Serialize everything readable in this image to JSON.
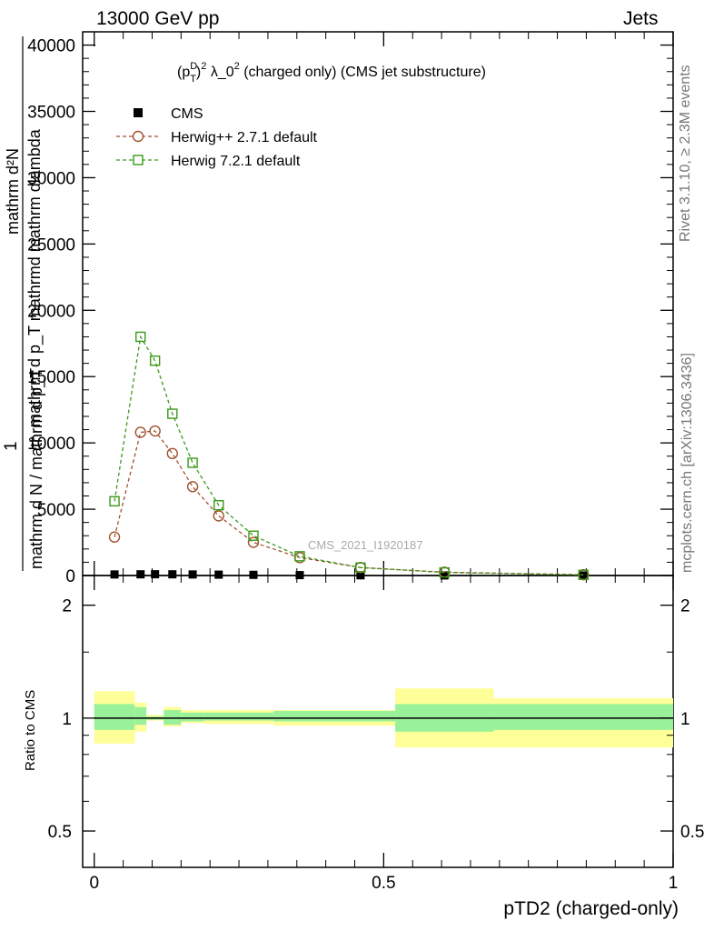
{
  "header": {
    "left": "13000 GeV pp",
    "right": "Jets"
  },
  "side_labels": {
    "rivet": "Rivet 3.1.10, ≥ 2.3M events",
    "mcplots": "mcplots.cern.ch [arXiv:1306.3436]"
  },
  "watermark": "CMS_2021_I1920187",
  "chart_data": [
    {
      "type": "line",
      "title": "(p_T^D)^2 λ_0^2 (charged only) (CMS jet substructure)",
      "title_parts": {
        "open": "(p",
        "sup": "D",
        "sub": "T",
        "close": ")",
        "exp": "2",
        "lambda": " λ_0",
        "exp2": "2",
        "rest": " (charged only) (CMS jet substructure)"
      },
      "ylabel_numerator_top": "mathrm d²N",
      "ylabel_numerator_bottom": "mathrm d p_T mathrmd mathrm dlambda",
      "ylabel_denominator": "mathrm d N / mathrm d p_T",
      "ylabel_leading": "1",
      "ylim": [
        0,
        41000
      ],
      "yticks": [
        0,
        5000,
        10000,
        15000,
        20000,
        25000,
        30000,
        35000,
        40000
      ],
      "ytick_labels": [
        "0",
        "5000",
        "10000",
        "15000",
        "20000",
        "25000",
        "30000",
        "35000",
        "40000"
      ],
      "xlim": [
        -0.02,
        1.0
      ],
      "legend_position": "top-left",
      "series": [
        {
          "name": "CMS",
          "color": "#000000",
          "marker": "filled-square",
          "x": [
            0.035,
            0.08,
            0.105,
            0.135,
            0.17,
            0.215,
            0.275,
            0.355,
            0.46,
            0.605,
            0.845
          ],
          "values": [
            80,
            90,
            95,
            90,
            80,
            65,
            50,
            30,
            15,
            7,
            3
          ]
        },
        {
          "name": "Herwig++ 2.7.1 default",
          "color": "#a0522d",
          "marker": "open-circle",
          "x": [
            0.035,
            0.08,
            0.105,
            0.135,
            0.17,
            0.215,
            0.275,
            0.355,
            0.46,
            0.605,
            0.845
          ],
          "values": [
            2900,
            10800,
            10900,
            9200,
            6700,
            4500,
            2500,
            1350,
            600,
            250,
            60
          ]
        },
        {
          "name": "Herwig 7.2.1 default",
          "color": "#3a9a1a",
          "marker": "open-square",
          "x": [
            0.035,
            0.08,
            0.105,
            0.135,
            0.17,
            0.215,
            0.275,
            0.355,
            0.46,
            0.605,
            0.845
          ],
          "values": [
            5600,
            18000,
            16200,
            12200,
            8500,
            5300,
            3000,
            1450,
            600,
            230,
            50
          ]
        }
      ]
    },
    {
      "type": "area",
      "ylabel": "Ratio to CMS",
      "xlabel": "pTD2 (charged-only)",
      "ylim": [
        0.4,
        2.4
      ],
      "log_y": true,
      "yticks": [
        0.5,
        1,
        2
      ],
      "ytick_labels": [
        "0.5",
        "1",
        "2"
      ],
      "xlim": [
        -0.02,
        1.0
      ],
      "xticks": [
        0,
        0.5,
        1
      ],
      "xtick_labels": [
        "0",
        "0.5",
        "1"
      ],
      "reference_line": 1,
      "bands": {
        "edges": [
          0.0,
          0.07,
          0.09,
          0.12,
          0.15,
          0.19,
          0.31,
          0.52,
          0.69,
          1.0
        ],
        "inner_low": [
          0.93,
          0.96,
          0.99,
          0.96,
          0.98,
          0.985,
          0.98,
          0.92,
          0.93,
          0.945
        ],
        "inner_high": [
          1.09,
          1.07,
          1.01,
          1.05,
          1.035,
          1.035,
          1.045,
          1.09,
          1.09,
          1.07
        ],
        "outer_low": [
          0.855,
          0.92,
          0.985,
          0.95,
          0.97,
          0.965,
          0.955,
          0.835,
          0.835,
          0.89
        ],
        "outer_high": [
          1.18,
          1.1,
          1.02,
          1.07,
          1.05,
          1.05,
          1.05,
          1.2,
          1.13,
          1.13
        ],
        "inner_color": "#99f299",
        "outer_color": "#ffff99"
      }
    }
  ]
}
